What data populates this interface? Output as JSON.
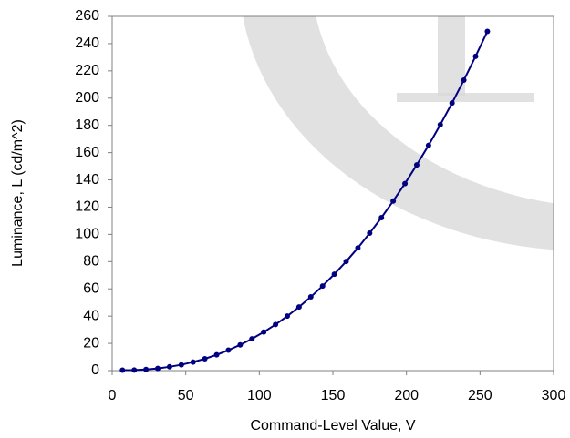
{
  "chart_data": {
    "type": "line",
    "x_label": "Command-Level Value, V",
    "y_label": "Luminance, L (cd/m^2)",
    "x": [
      7,
      15,
      23,
      31,
      39,
      47,
      55,
      63,
      71,
      79,
      87,
      95,
      103,
      111,
      119,
      127,
      135,
      143,
      151,
      159,
      167,
      175,
      183,
      191,
      199,
      207,
      215,
      223,
      231,
      239,
      247,
      255
    ],
    "series": [
      {
        "color": "#000080",
        "values": [
          0.3,
          0.4,
          0.8,
          1.6,
          2.8,
          4.3,
          6.3,
          8.7,
          11.6,
          15.0,
          18.9,
          23.3,
          28.3,
          33.8,
          40.0,
          46.7,
          54.1,
          62.1,
          70.8,
          80.1,
          90.1,
          100.9,
          112.3,
          124.5,
          137.3,
          151.0,
          165.3,
          180.5,
          196.4,
          213.2,
          230.7,
          249.0
        ]
      }
    ],
    "xlim": [
      0,
      300
    ],
    "xticks": [
      0,
      50,
      100,
      150,
      200,
      250,
      300
    ],
    "ylim": [
      0,
      260
    ],
    "yticks": [
      0,
      20,
      40,
      60,
      80,
      100,
      120,
      140,
      160,
      180,
      200,
      220,
      240,
      260
    ],
    "grid": false
  }
}
